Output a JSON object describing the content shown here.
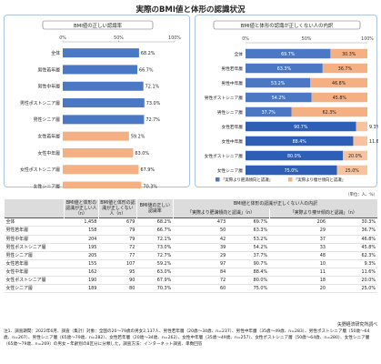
{
  "page_title": "実際のBMI値と体形の認識状況",
  "unit": "（単位：人、%）",
  "source": "矢野経済研究所調べ",
  "note": "注1．調査期間：2022年6月、調査（集計）対象：全国の20～79歳の男女2,137人、男性若年層（20歳～34歳、n=237）、男性中年層（35歳～49歳、n=283）、男性ポストシニア層（50歳～64歳、n=267）、男性シニア層（65歳～79歳、n=282）、女性若年層（20歳～34歳、n=262）、女性中年層（35歳～49歳、n=257）、女性ポストシニア層（50歳～64歳、n=280）、女性シニア層（65歳～79歳、n=269）の男女・年齢別の8区分に分類した。調査方法：インターネット調査、単数回答",
  "colors": {
    "blue": "#4a78c4",
    "orange": "#f4b083",
    "accent": "#1f4e9a"
  },
  "chart_data": [
    {
      "type": "bar",
      "title": "BMI値の正しい認識率",
      "categories": [
        "全体",
        "男性若年層",
        "男性中年層",
        "男性ポストシニア層",
        "男性シニア層",
        "女性若年層",
        "女性中年層",
        "女性ポストシニア層",
        "女性シニア層"
      ],
      "values": [
        68.2,
        66.7,
        72.1,
        73.0,
        72.7,
        59.2,
        63.0,
        67.9,
        70.3
      ],
      "value_labels": [
        "68.2%",
        "66.7%",
        "72.1%",
        "73.0%",
        "72.7%",
        "59.2%",
        "63.0%",
        "67.9%",
        "70.3%"
      ],
      "xlim": [
        0,
        100
      ],
      "ticks": [
        "0%",
        "50%",
        "100%"
      ],
      "grid": false
    },
    {
      "type": "bar",
      "stacked": true,
      "title": "BMI値と体形の認識が正しくない人の内訳",
      "categories": [
        "全体",
        "男性若年層",
        "男性中年層",
        "男性ポストシニア層",
        "男性シニア層",
        "女性若年層",
        "女性中年層",
        "女性ポストシニア層",
        "女性シニア層"
      ],
      "series": [
        {
          "name": "「実際より肥満傾向と認識」",
          "values": [
            69.7,
            63.3,
            53.2,
            54.2,
            37.7,
            90.7,
            88.4,
            80.0,
            75.0
          ],
          "labels": [
            "69.7%",
            "63.3%",
            "53.2%",
            "54.2%",
            "37.7%",
            "90.7%",
            "88.4%",
            "80.0%",
            "75.0%"
          ]
        },
        {
          "name": "「実際より痩せ傾向と認識」",
          "values": [
            30.3,
            36.7,
            46.8,
            45.8,
            62.3,
            9.3,
            11.6,
            20.0,
            25.0
          ],
          "labels": [
            "30.3%",
            "36.7%",
            "46.8%",
            "45.8%",
            "62.3%",
            "9.3%",
            "11.6%",
            "20.0%",
            "25.0%"
          ]
        }
      ],
      "xlim": [
        0,
        100
      ],
      "ticks": [
        "0%",
        "50%",
        "100%"
      ],
      "legend": "bottom"
    },
    {
      "type": "table",
      "headers": {
        "c1": "BMI値と体形の認識が正しい人（n）",
        "c2": "BMI値と体形の認識が正しくない人（n）",
        "c3": "BMI値の正しい認識率",
        "group": "BMI値と体形の認識が正しくない人の内訳",
        "g1": "「実際より肥満傾向と認識」（n）",
        "g2": "「実際より痩せ傾向と認識」（n）"
      },
      "rows": [
        [
          "全体",
          "1,458",
          "679",
          "68.2%",
          "473",
          "69.7%",
          "206",
          "30.3%"
        ],
        [
          "男性若年層",
          "158",
          "79",
          "66.7%",
          "50",
          "63.3%",
          "29",
          "36.7%"
        ],
        [
          "男性中年層",
          "204",
          "79",
          "72.1%",
          "42",
          "53.2%",
          "37",
          "46.8%"
        ],
        [
          "男性ポストシニア層",
          "195",
          "72",
          "73.0%",
          "39",
          "54.2%",
          "33",
          "45.8%"
        ],
        [
          "男性シニア層",
          "205",
          "77",
          "72.7%",
          "29",
          "37.7%",
          "48",
          "62.3%"
        ],
        [
          "女性若年層",
          "155",
          "107",
          "59.2%",
          "97",
          "90.7%",
          "10",
          "9.3%"
        ],
        [
          "女性中年層",
          "162",
          "95",
          "63.0%",
          "84",
          "88.4%",
          "11",
          "11.6%"
        ],
        [
          "女性ポストシニア層",
          "190",
          "90",
          "67.9%",
          "72",
          "80.0%",
          "18",
          "20.0%"
        ],
        [
          "女性シニア層",
          "189",
          "80",
          "70.3%",
          "60",
          "75.0%",
          "20",
          "25.0%"
        ]
      ]
    }
  ]
}
